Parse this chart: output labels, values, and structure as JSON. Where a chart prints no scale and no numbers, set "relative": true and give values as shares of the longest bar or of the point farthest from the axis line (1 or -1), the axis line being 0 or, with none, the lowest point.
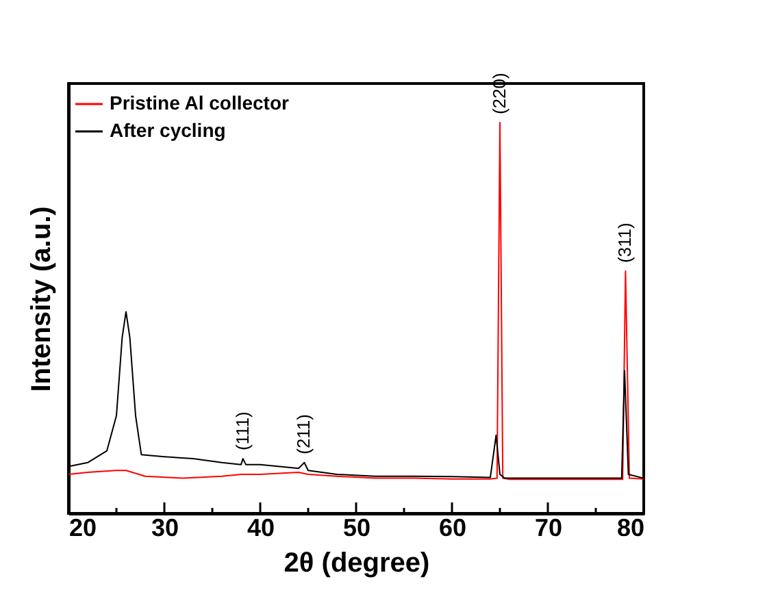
{
  "chart_data": {
    "type": "line",
    "relative": true,
    "xlabel": "2θ (degree)",
    "ylabel": "Intensity (a.u.)",
    "xlim": [
      20,
      80
    ],
    "xticks": [
      20,
      {
        "value": 25,
        "label": null
      },
      30,
      {
        "value": 35,
        "label": null
      },
      40,
      {
        "value": 45,
        "label": null
      },
      50,
      {
        "value": 55,
        "label": null
      },
      60,
      {
        "value": 65,
        "label": null
      },
      70,
      {
        "value": 75,
        "label": null
      },
      80
    ],
    "tick_labels": "x",
    "grid": false,
    "legend": "top left",
    "marker": "none",
    "line_style": "solid",
    "series": [
      {
        "name": "Pristine Al collector",
        "color": "#ff0000",
        "x": [
          20,
          22,
          25,
          26,
          28,
          32,
          36,
          38,
          40,
          44,
          45,
          48,
          52,
          56,
          60,
          64,
          64.7,
          65.0,
          65.3,
          66,
          70,
          74,
          77.8,
          78.1,
          78.5,
          80
        ],
        "values": [
          0.1,
          0.105,
          0.11,
          0.11,
          0.095,
          0.09,
          0.095,
          0.1,
          0.1,
          0.105,
          0.1,
          0.095,
          0.09,
          0.09,
          0.088,
          0.088,
          0.09,
          1.0,
          0.09,
          0.087,
          0.087,
          0.087,
          0.087,
          0.62,
          0.09,
          0.088
        ]
      },
      {
        "name": "After cycling",
        "color": "#000000",
        "x": [
          20,
          22,
          24,
          25,
          25.6,
          26,
          26.4,
          27,
          27.6,
          30,
          33,
          36,
          38,
          38.2,
          38.5,
          40,
          44,
          44.6,
          45,
          48,
          52,
          56,
          60,
          64,
          64.6,
          65,
          65.5,
          70,
          75,
          77.7,
          78.0,
          78.4,
          80
        ],
        "values": [
          0.12,
          0.13,
          0.16,
          0.25,
          0.45,
          0.516,
          0.45,
          0.25,
          0.15,
          0.145,
          0.14,
          0.13,
          0.125,
          0.14,
          0.125,
          0.125,
          0.115,
          0.13,
          0.11,
          0.1,
          0.095,
          0.095,
          0.094,
          0.092,
          0.2,
          0.1,
          0.09,
          0.09,
          0.09,
          0.09,
          0.365,
          0.1,
          0.09
        ]
      }
    ],
    "annotations": [
      {
        "text": "(111)",
        "x": 38.2,
        "y": 0.14
      },
      {
        "text": "(211)",
        "x": 44.6,
        "y": 0.13
      },
      {
        "text": "(220)",
        "x": 65.0,
        "y": 1.0
      },
      {
        "text": "(311)",
        "x": 78.1,
        "y": 0.62
      }
    ]
  }
}
